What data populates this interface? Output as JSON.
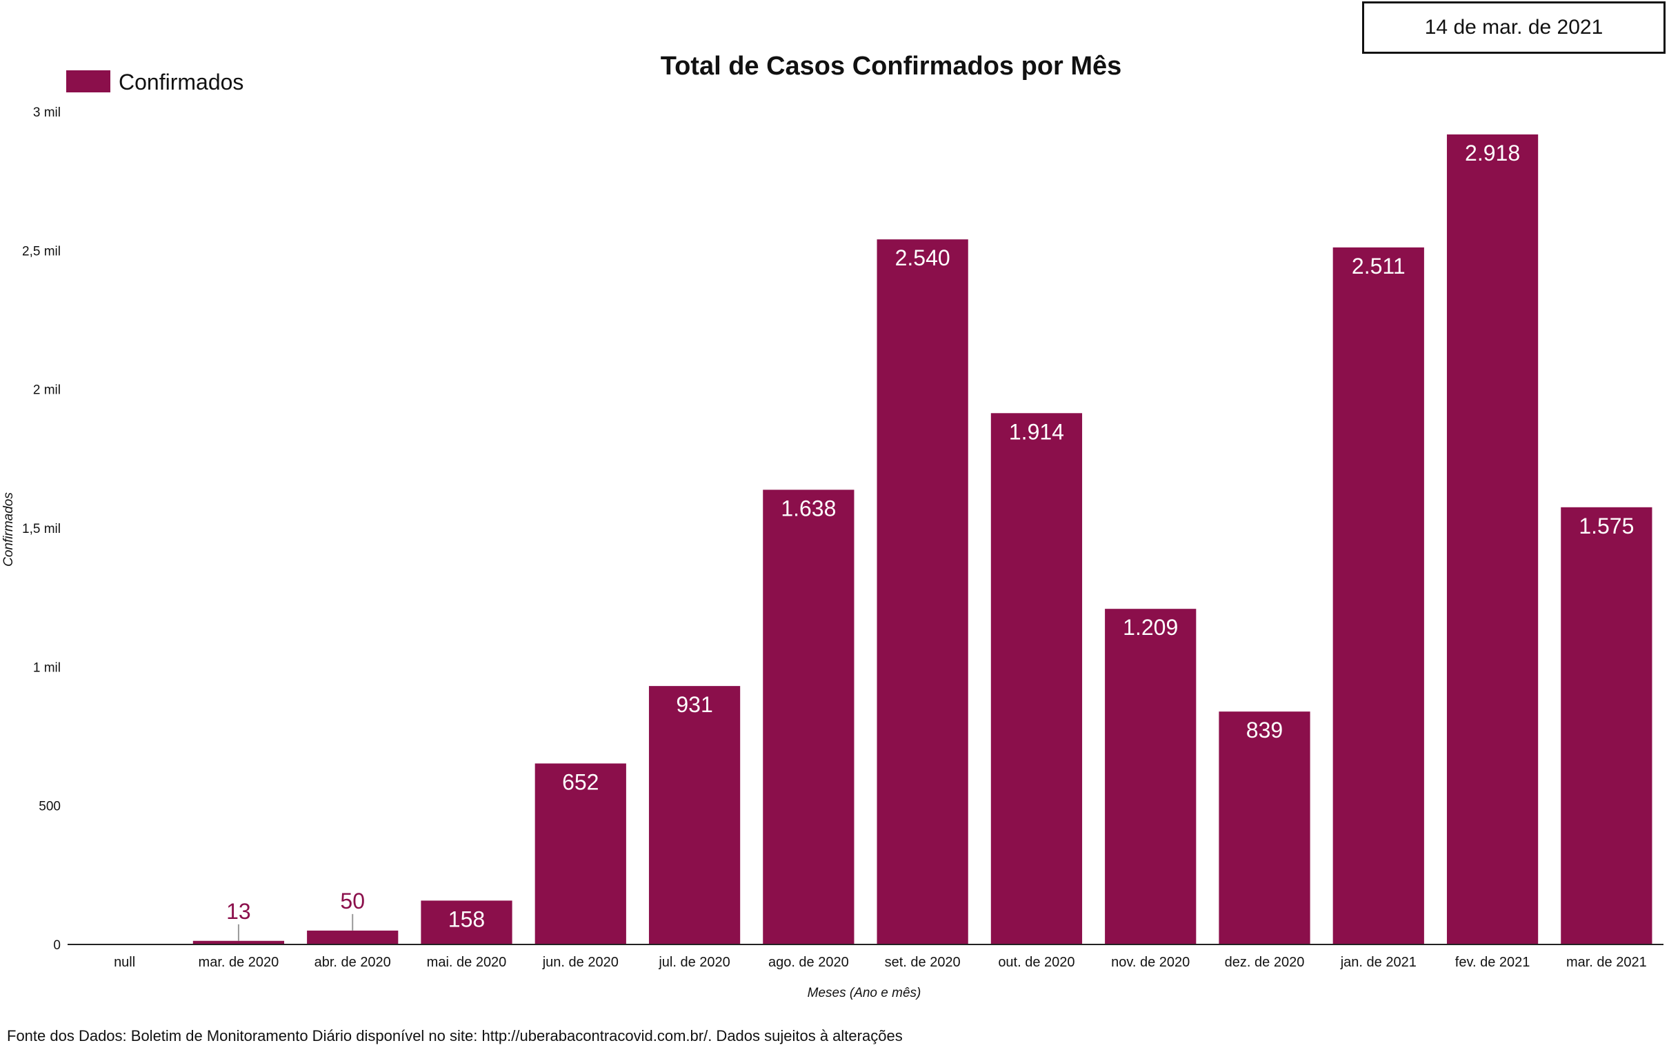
{
  "report_date": "14 de mar. de 2021",
  "source_note": "Fonte dos Dados: Boletim de Monitoramento Diário disponível no site: http://uberabacontracovid.com.br/. Dados sujeitos à alterações",
  "chart_data": {
    "type": "bar",
    "title": "Total de Casos Confirmados por Mês",
    "xlabel": "Meses (Ano e mês)",
    "ylabel": "Confirmados",
    "ylim": [
      0,
      3000
    ],
    "yticks": [
      {
        "value": 0,
        "label": "0"
      },
      {
        "value": 500,
        "label": "500"
      },
      {
        "value": 1000,
        "label": "1 mil"
      },
      {
        "value": 1500,
        "label": "1,5 mil"
      },
      {
        "value": 2000,
        "label": "2 mil"
      },
      {
        "value": 2500,
        "label": "2,5 mil"
      },
      {
        "value": 3000,
        "label": "3 mil"
      }
    ],
    "legend": {
      "position": "top-left",
      "entries": [
        "Confirmados"
      ]
    },
    "grid": false,
    "colors": {
      "bar": "#8b0f4b",
      "label_inside": "#ffffff",
      "label_outside": "#8b0f4b",
      "leader": "#999999"
    },
    "categories": [
      "null",
      "mar. de 2020",
      "abr. de 2020",
      "mai. de 2020",
      "jun. de 2020",
      "jul. de 2020",
      "ago. de 2020",
      "set. de 2020",
      "out. de 2020",
      "nov. de 2020",
      "dez. de 2020",
      "jan. de 2021",
      "fev. de 2021",
      "mar. de 2021"
    ],
    "series": [
      {
        "name": "Confirmados",
        "values": [
          null,
          13,
          50,
          158,
          652,
          931,
          1638,
          2540,
          1914,
          1209,
          839,
          2511,
          2918,
          1575
        ],
        "labels": [
          "",
          "13",
          "50",
          "158",
          "652",
          "931",
          "1.638",
          "2.540",
          "1.914",
          "1.209",
          "839",
          "2.511",
          "2.918",
          "1.575"
        ]
      }
    ]
  }
}
